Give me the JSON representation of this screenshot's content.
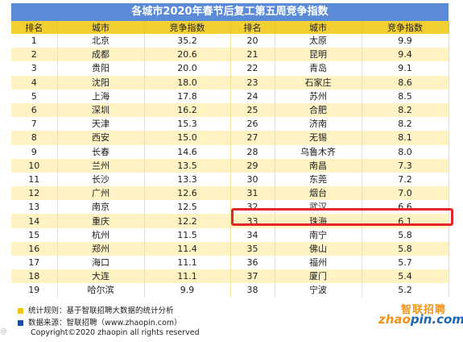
{
  "title": "各城市2020年春节后复工第五周竞争指数",
  "headers": [
    "排名",
    "城市",
    "竞争指数",
    "排名",
    "城市",
    "竞争指数"
  ],
  "rows": [
    [
      "1",
      "北京",
      "35.2",
      "20",
      "太原",
      "9.9"
    ],
    [
      "2",
      "成都",
      "20.6",
      "21",
      "昆明",
      "9.4"
    ],
    [
      "3",
      "贵阳",
      "20.0",
      "22",
      "青岛",
      "9.1"
    ],
    [
      "4",
      "沈阳",
      "18.0",
      "23",
      "石家庄",
      "8.6"
    ],
    [
      "5",
      "上海",
      "17.8",
      "24",
      "苏州",
      "8.5"
    ],
    [
      "6",
      "深圳",
      "16.2",
      "25",
      "合肥",
      "8.2"
    ],
    [
      "7",
      "天津",
      "15.3",
      "26",
      "济南",
      "8.2"
    ],
    [
      "8",
      "西安",
      "15.0",
      "27",
      "无锡",
      "8.1"
    ],
    [
      "9",
      "长春",
      "14.6",
      "28",
      "乌鲁木齐",
      "8.0"
    ],
    [
      "10",
      "兰州",
      "13.5",
      "29",
      "南昌",
      "7.3"
    ],
    [
      "11",
      "长沙",
      "13.3",
      "30",
      "东莞",
      "7.2"
    ],
    [
      "12",
      "广州",
      "12.6",
      "31",
      "烟台",
      "7.0"
    ],
    [
      "13",
      "南京",
      "12.5",
      "32",
      "武汉",
      "6.6"
    ],
    [
      "14",
      "重庆",
      "12.2",
      "33",
      "珠海",
      "6.1"
    ],
    [
      "15",
      "杭州",
      "11.5",
      "34",
      "南宁",
      "5.8"
    ],
    [
      "16",
      "郑州",
      "11.4",
      "35",
      "佛山",
      "5.8"
    ],
    [
      "17",
      "海口",
      "11.1",
      "36",
      "福州",
      "5.7"
    ],
    [
      "18",
      "大连",
      "11.1",
      "37",
      "厦门",
      "5.4"
    ],
    [
      "19",
      "哈尔滨",
      "9.9",
      "38",
      "宁波",
      "5.2"
    ]
  ],
  "highlighted_row_right": "33",
  "footer": {
    "rule": "统计规则：基于智联招聘大数据的统计分析",
    "source": "数据来源：智联招聘（www.zhaopin.com）",
    "copyright": "Copyright©2020 zhaopin all rights reserved",
    "watermark": "@"
  },
  "logo": {
    "cn": "智联招聘",
    "en_prefix": "zhao",
    "en_suffix": "pin.com"
  },
  "colors": {
    "header_bar": "#5b8ad6",
    "table_header": "#f2d034",
    "stripe": "#fff3c4",
    "highlight": "#e3262a",
    "rule_square": "#f2c418",
    "source_square": "#1f4fa0"
  }
}
